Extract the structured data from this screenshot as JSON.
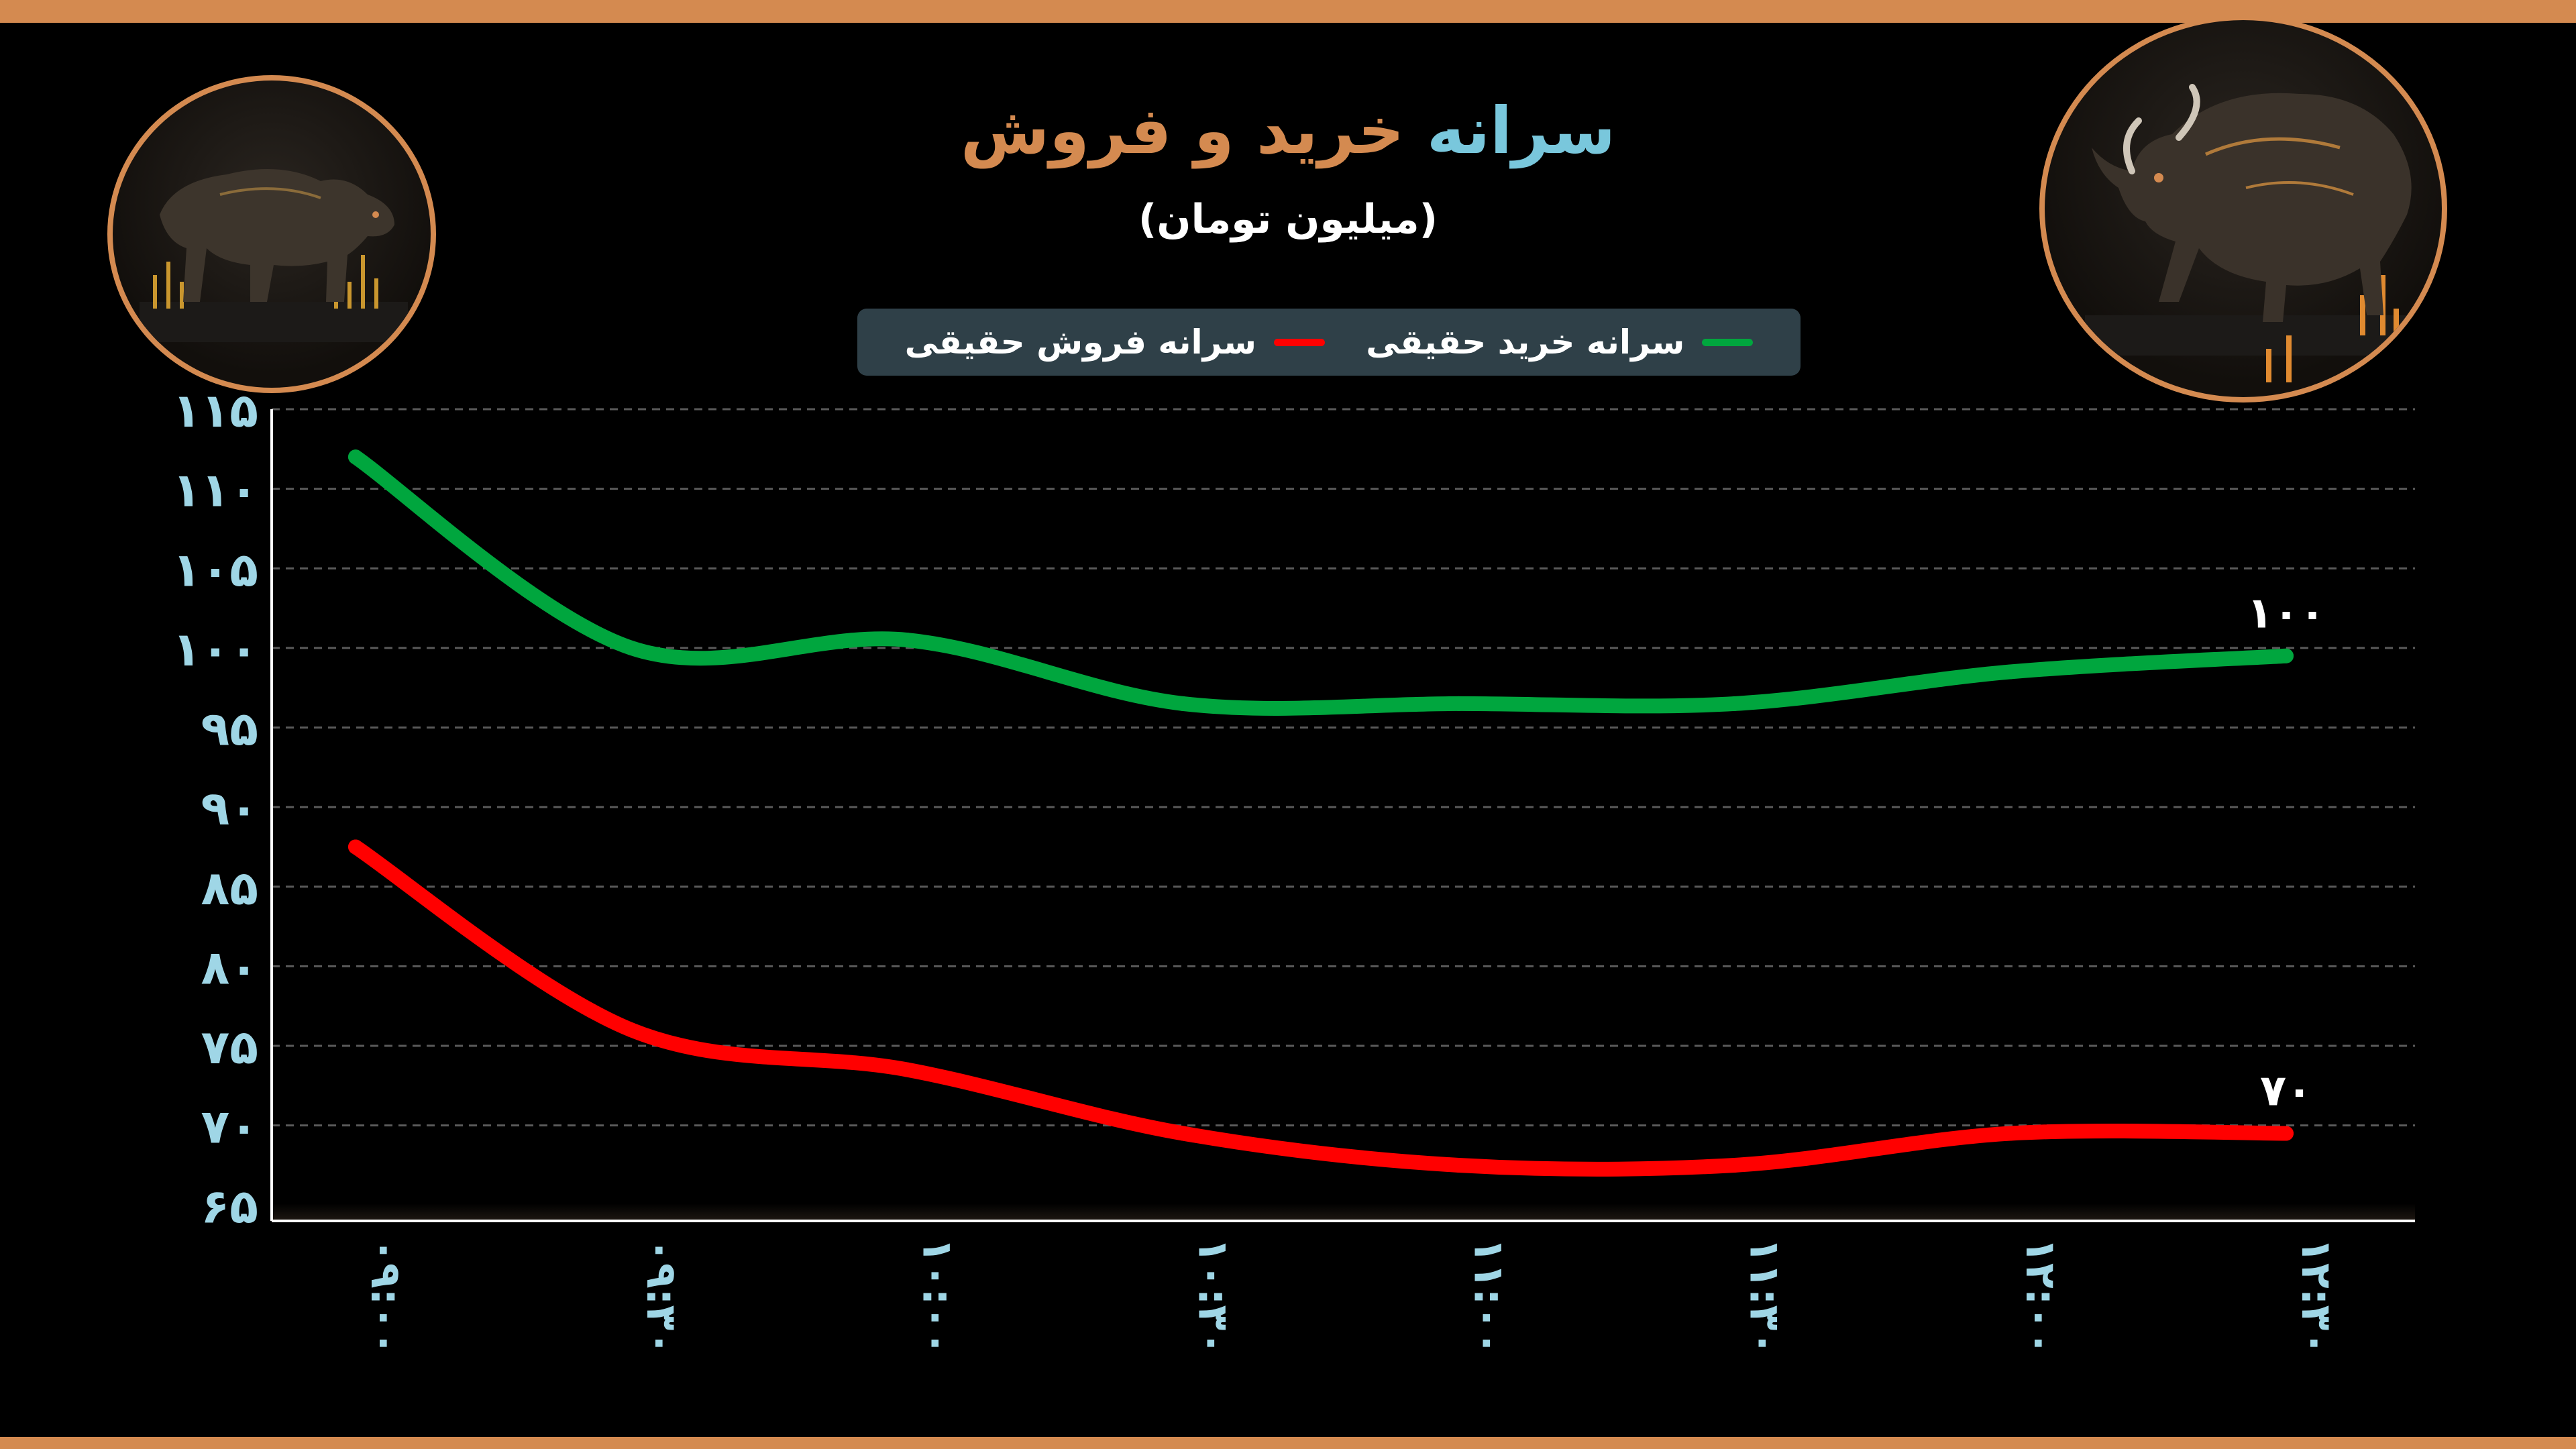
{
  "header": {
    "title_part1": "سرانه",
    "title_part2": "خرید و فروش",
    "subtitle": "(میلیون تومان)"
  },
  "legend": {
    "sell_label": "سرانه فروش حقیقی",
    "buy_label": "سرانه خرید حقیقی"
  },
  "mascots": {
    "left_icon": "bear-icon",
    "right_icon": "bull-icon"
  },
  "colors": {
    "accent_orange": "#D48A50",
    "title_blue": "#79C7DC",
    "buy_green": "#00A63E",
    "sell_red": "#FF0000",
    "legend_bg": "#2F4048",
    "axis_text": "#9FD6E6"
  },
  "chart_data": {
    "type": "line",
    "title": "سرانه خرید و فروش",
    "ylabel": "(میلیون تومان)",
    "xlabel": "",
    "x": [
      "۰۹:۰۰",
      "۰۹:۳۰",
      "۱۰:۰۰",
      "۱۰:۳۰",
      "۱۱:۰۰",
      "۱۱:۳۰",
      "۱۲:۰۰",
      "۱۲:۳۰"
    ],
    "yticks": [
      65,
      70,
      75,
      80,
      85,
      90,
      95,
      100,
      105,
      110,
      115
    ],
    "ytick_labels": [
      "۶۵",
      "۷۰",
      "۷۵",
      "۸۰",
      "۸۵",
      "۹۰",
      "۹۵",
      "۱۰۰",
      "۱۰۵",
      "۱۱۰",
      "۱۱۵"
    ],
    "ylim": [
      64,
      115
    ],
    "grid": true,
    "legend_position": "top-center",
    "series": [
      {
        "name": "سرانه خرید حقیقی",
        "color": "#00A63E",
        "values": [
          112,
          100,
          100.5,
          96.5,
          96.5,
          96.5,
          98.5,
          99.5
        ],
        "end_label": "۱۰۰"
      },
      {
        "name": "سرانه فروش حقیقی",
        "color": "#FF0000",
        "values": [
          87.5,
          76,
          73.5,
          69.5,
          67.5,
          67.5,
          69.5,
          69.5
        ],
        "end_label": "۷۰"
      }
    ]
  }
}
